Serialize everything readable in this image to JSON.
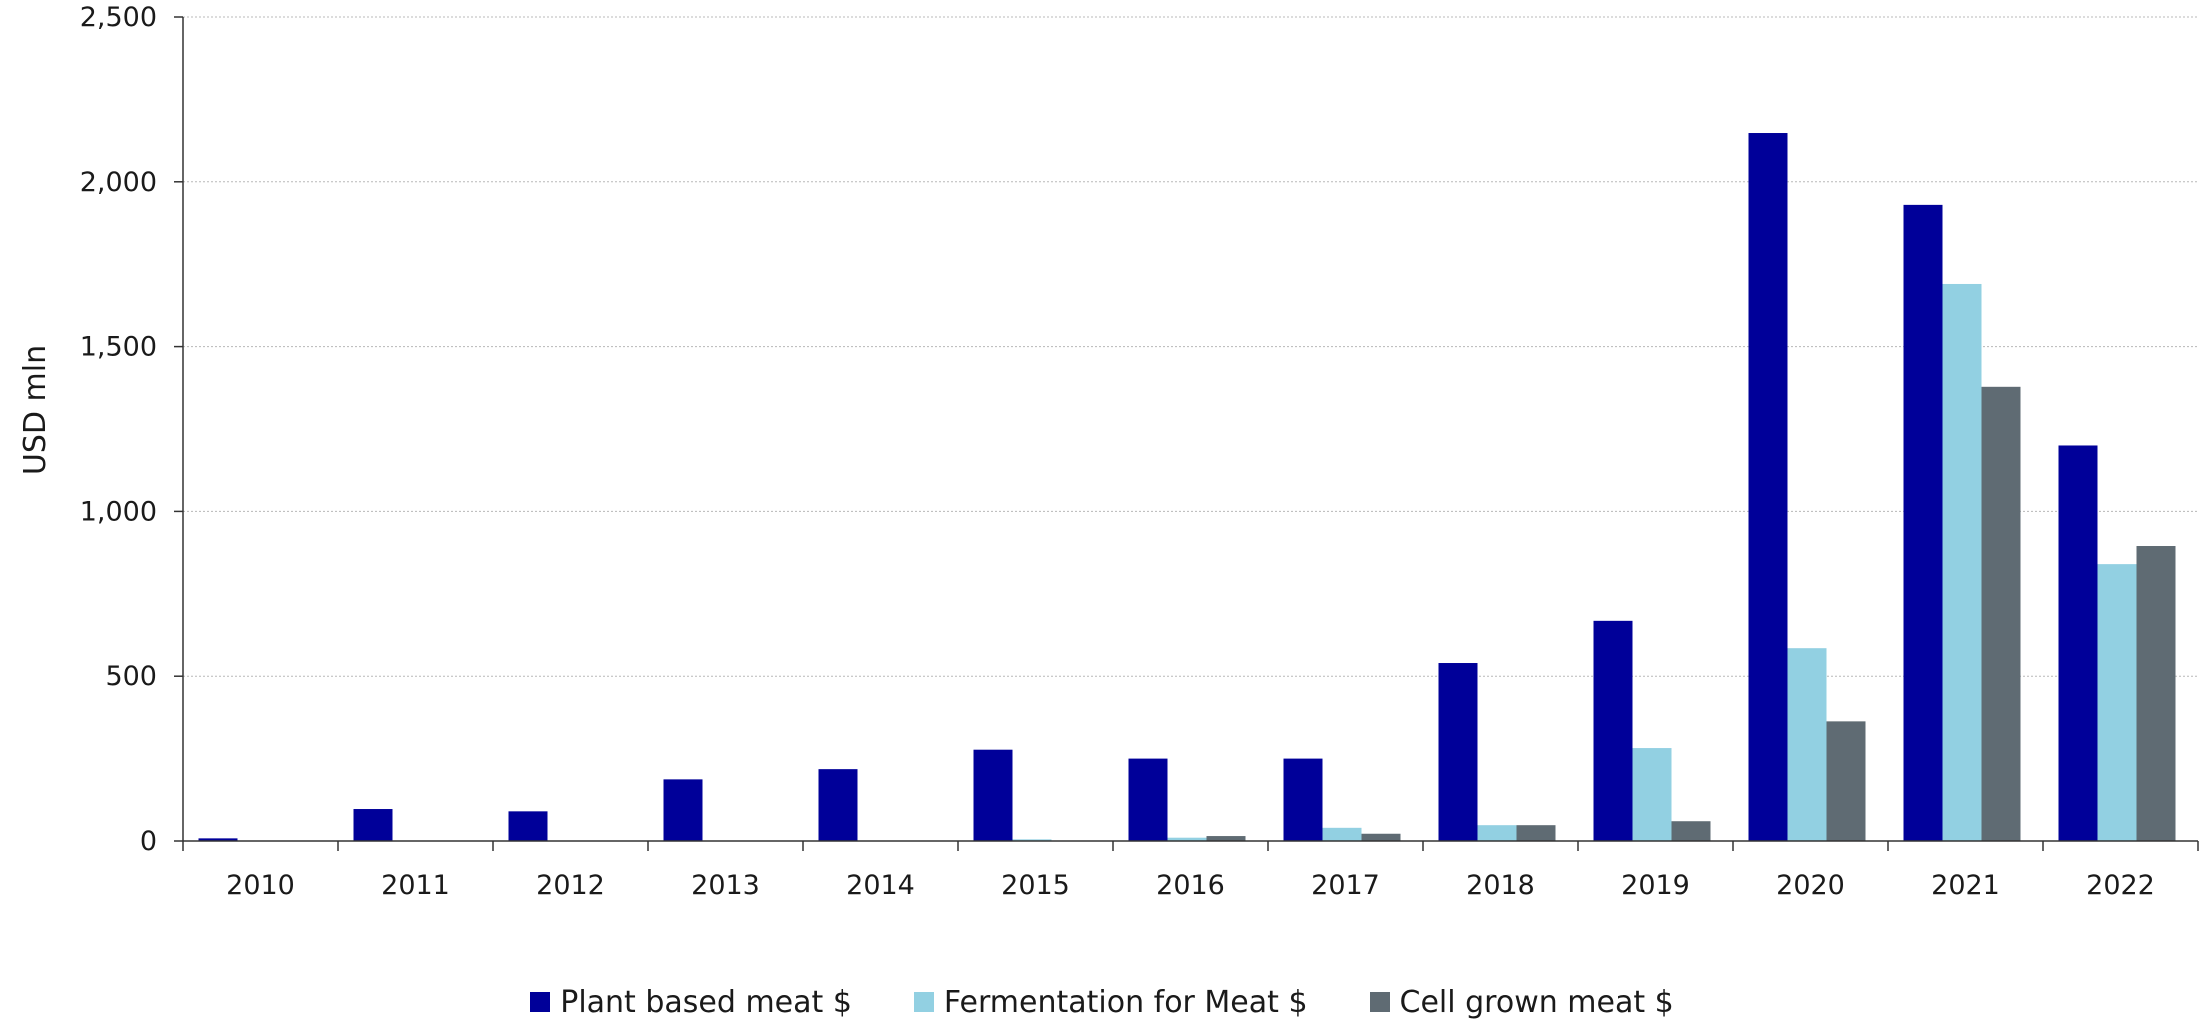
{
  "chart_data": {
    "type": "bar",
    "title": "",
    "xlabel": "",
    "ylabel": "USD mln",
    "ylim": [
      0,
      2500
    ],
    "yticks": [
      0,
      500,
      1000,
      1500,
      2000,
      2500
    ],
    "ytick_labels": [
      "0",
      "500",
      "1,000",
      "1,500",
      "2,000",
      "2,500"
    ],
    "grid": true,
    "legend_position": "bottom",
    "categories": [
      "2010",
      "2011",
      "2012",
      "2013",
      "2014",
      "2015",
      "2016",
      "2017",
      "2018",
      "2019",
      "2020",
      "2021",
      "2022"
    ],
    "series": [
      {
        "name": "Plant based meat $",
        "color": "#000099",
        "values": [
          8,
          97,
          90,
          187,
          218,
          277,
          250,
          250,
          540,
          668,
          2148,
          1930,
          1200
        ]
      },
      {
        "name": "Fermentation for Meat $",
        "color": "#92d0e2",
        "values": [
          0,
          0,
          0,
          0,
          0,
          5,
          10,
          40,
          48,
          282,
          585,
          1690,
          840
        ]
      },
      {
        "name": "Cell grown meat $",
        "color": "#5f6b73",
        "values": [
          0,
          0,
          0,
          0,
          0,
          0,
          15,
          22,
          48,
          60,
          363,
          1378,
          895
        ]
      }
    ]
  }
}
